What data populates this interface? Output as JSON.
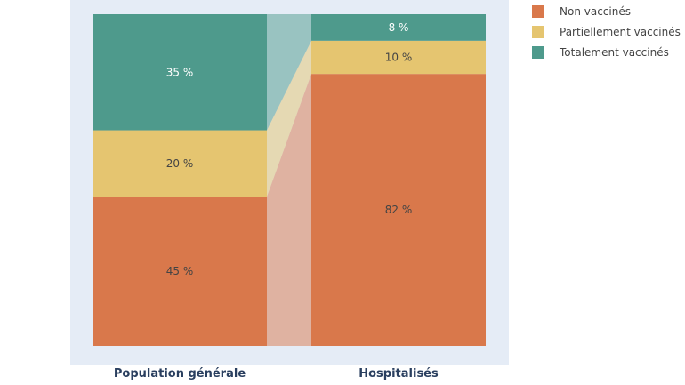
{
  "chart_data": {
    "type": "bar",
    "stacked": true,
    "normalized": true,
    "categories": [
      "Population générale",
      "Hospitalisés"
    ],
    "series": [
      {
        "name": "Non vaccinés",
        "values": [
          45,
          82
        ],
        "labels": [
          "45 %",
          "82 %"
        ],
        "color": "#d9784b"
      },
      {
        "name": "Partiellement vaccinés",
        "values": [
          20,
          10
        ],
        "labels": [
          "20 %",
          "10 %"
        ],
        "color": "#e5c570"
      },
      {
        "name": "Totalement vaccinés",
        "values": [
          35,
          8
        ],
        "labels": [
          "35 %",
          "8 %"
        ],
        "color": "#4e9a8c"
      }
    ],
    "ylim": [
      0,
      100
    ],
    "plot_background": "#e5ecf6",
    "label_colors": {
      "light": "#ffffff",
      "dark": "#444444"
    },
    "legend": {
      "position": "top-right"
    }
  }
}
